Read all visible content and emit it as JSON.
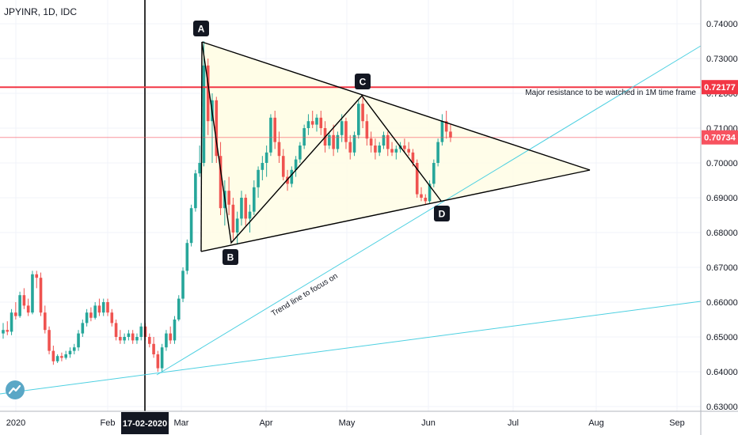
{
  "header": {
    "symbol_title": "JPYINR, 1D, IDC"
  },
  "colors": {
    "up": "#26a69a",
    "down": "#ef5350",
    "trend": "#4dd0e1",
    "resistance": "#f23645",
    "triangle_fill": "#fffde7",
    "price_badge_dark": "#f23645",
    "price_badge_light": "#f7525f"
  },
  "price_labels": {
    "resistance": "0.72177",
    "current": "0.70734"
  },
  "annotations": {
    "resistance_note": "Major resistance to be watched in 1M time frame",
    "trendline_note": "Trend line to focus on",
    "points": [
      "A",
      "B",
      "C",
      "D"
    ],
    "crosshair_date": "17-02-2020"
  },
  "icons": {
    "logo": "tradingview-logo-icon"
  },
  "chart_data": {
    "type": "candlestick",
    "title": "JPYINR, 1D, IDC",
    "ylim": [
      0.63,
      0.745
    ],
    "y_ticks": [
      "0.74000",
      "0.73000",
      "0.72000",
      "0.71000",
      "0.70000",
      "0.69000",
      "0.68000",
      "0.67000",
      "0.66000",
      "0.65000",
      "0.64000",
      "0.63000"
    ],
    "x_ticks": [
      "2020",
      "Feb",
      "Mar",
      "Apr",
      "May",
      "Jun",
      "Jul",
      "Aug",
      "Sep"
    ],
    "resistance_level": 0.72177,
    "last_price": 0.70734,
    "pattern_points": {
      "A": [
        "Mar 09",
        0.7345
      ],
      "B": [
        "Mar 20",
        0.6765
      ],
      "C": [
        "May 06",
        0.7195
      ],
      "D": [
        "Jun 02",
        0.689
      ]
    },
    "candles": [
      [
        0.651,
        0.654,
        0.6495,
        0.652
      ],
      [
        0.652,
        0.6545,
        0.6505,
        0.6515
      ],
      [
        0.6515,
        0.658,
        0.6505,
        0.657
      ],
      [
        0.657,
        0.66,
        0.655,
        0.656
      ],
      [
        0.656,
        0.663,
        0.6555,
        0.662
      ],
      [
        0.662,
        0.664,
        0.658,
        0.659
      ],
      [
        0.659,
        0.661,
        0.656,
        0.657
      ],
      [
        0.657,
        0.669,
        0.6565,
        0.668
      ],
      [
        0.668,
        0.669,
        0.664,
        0.667
      ],
      [
        0.667,
        0.6685,
        0.656,
        0.657
      ],
      [
        0.657,
        0.659,
        0.651,
        0.652
      ],
      [
        0.652,
        0.653,
        0.645,
        0.646
      ],
      [
        0.646,
        0.6475,
        0.642,
        0.643
      ],
      [
        0.643,
        0.645,
        0.6425,
        0.6445
      ],
      [
        0.6445,
        0.6455,
        0.643,
        0.644
      ],
      [
        0.644,
        0.646,
        0.6435,
        0.645
      ],
      [
        0.645,
        0.647,
        0.644,
        0.646
      ],
      [
        0.646,
        0.648,
        0.645,
        0.647
      ],
      [
        0.647,
        0.652,
        0.646,
        0.651
      ],
      [
        0.651,
        0.655,
        0.65,
        0.654
      ],
      [
        0.654,
        0.658,
        0.653,
        0.657
      ],
      [
        0.657,
        0.6585,
        0.6545,
        0.6555
      ],
      [
        0.6555,
        0.66,
        0.655,
        0.659
      ],
      [
        0.659,
        0.661,
        0.656,
        0.657
      ],
      [
        0.657,
        0.661,
        0.656,
        0.66
      ],
      [
        0.66,
        0.661,
        0.656,
        0.657
      ],
      [
        0.657,
        0.658,
        0.653,
        0.654
      ],
      [
        0.654,
        0.655,
        0.649,
        0.65
      ],
      [
        0.65,
        0.652,
        0.648,
        0.649
      ],
      [
        0.649,
        0.651,
        0.648,
        0.65
      ],
      [
        0.65,
        0.652,
        0.649,
        0.651
      ],
      [
        0.651,
        0.652,
        0.648,
        0.649
      ],
      [
        0.649,
        0.651,
        0.648,
        0.65
      ],
      [
        0.65,
        0.654,
        0.649,
        0.653
      ],
      [
        0.653,
        0.654,
        0.649,
        0.65
      ],
      [
        0.65,
        0.651,
        0.647,
        0.648
      ],
      [
        0.648,
        0.65,
        0.644,
        0.645
      ],
      [
        0.645,
        0.646,
        0.64,
        0.641
      ],
      [
        0.641,
        0.648,
        0.64,
        0.647
      ],
      [
        0.647,
        0.652,
        0.646,
        0.651
      ],
      [
        0.651,
        0.653,
        0.648,
        0.649
      ],
      [
        0.649,
        0.656,
        0.648,
        0.655
      ],
      [
        0.655,
        0.662,
        0.6545,
        0.661
      ],
      [
        0.661,
        0.67,
        0.66,
        0.669
      ],
      [
        0.669,
        0.678,
        0.668,
        0.677
      ],
      [
        0.677,
        0.688,
        0.676,
        0.687
      ],
      [
        0.687,
        0.698,
        0.686,
        0.697
      ],
      [
        0.697,
        0.705,
        0.696,
        0.7
      ],
      [
        0.7,
        0.735,
        0.699,
        0.728
      ],
      [
        0.728,
        0.73,
        0.708,
        0.712
      ],
      [
        0.712,
        0.72,
        0.7,
        0.718
      ],
      [
        0.718,
        0.719,
        0.7,
        0.702
      ],
      [
        0.702,
        0.706,
        0.685,
        0.687
      ],
      [
        0.687,
        0.695,
        0.682,
        0.692
      ],
      [
        0.692,
        0.696,
        0.685,
        0.688
      ],
      [
        0.688,
        0.69,
        0.678,
        0.68
      ],
      [
        0.68,
        0.686,
        0.6765,
        0.684
      ],
      [
        0.684,
        0.692,
        0.682,
        0.69
      ],
      [
        0.69,
        0.691,
        0.682,
        0.684
      ],
      [
        0.684,
        0.688,
        0.68,
        0.686
      ],
      [
        0.686,
        0.695,
        0.685,
        0.693
      ],
      [
        0.693,
        0.699,
        0.69,
        0.698
      ],
      [
        0.698,
        0.702,
        0.695,
        0.7
      ],
      [
        0.7,
        0.705,
        0.696,
        0.703
      ],
      [
        0.703,
        0.714,
        0.702,
        0.713
      ],
      [
        0.713,
        0.715,
        0.704,
        0.706
      ],
      [
        0.706,
        0.709,
        0.7,
        0.702
      ],
      [
        0.702,
        0.704,
        0.695,
        0.696
      ],
      [
        0.696,
        0.698,
        0.692,
        0.694
      ],
      [
        0.694,
        0.699,
        0.693,
        0.698
      ],
      [
        0.698,
        0.702,
        0.696,
        0.701
      ],
      [
        0.701,
        0.706,
        0.7,
        0.705
      ],
      [
        0.705,
        0.711,
        0.704,
        0.71
      ],
      [
        0.71,
        0.714,
        0.708,
        0.712
      ],
      [
        0.712,
        0.715,
        0.71,
        0.711
      ],
      [
        0.711,
        0.714,
        0.709,
        0.713
      ],
      [
        0.713,
        0.715,
        0.708,
        0.71
      ],
      [
        0.71,
        0.712,
        0.703,
        0.705
      ],
      [
        0.705,
        0.709,
        0.704,
        0.708
      ],
      [
        0.708,
        0.711,
        0.702,
        0.704
      ],
      [
        0.704,
        0.709,
        0.703,
        0.708
      ],
      [
        0.708,
        0.714,
        0.706,
        0.712
      ],
      [
        0.712,
        0.713,
        0.704,
        0.706
      ],
      [
        0.706,
        0.708,
        0.701,
        0.703
      ],
      [
        0.703,
        0.709,
        0.702,
        0.708
      ],
      [
        0.708,
        0.718,
        0.707,
        0.717
      ],
      [
        0.717,
        0.7195,
        0.71,
        0.712
      ],
      [
        0.712,
        0.714,
        0.705,
        0.707
      ],
      [
        0.707,
        0.709,
        0.703,
        0.705
      ],
      [
        0.705,
        0.707,
        0.701,
        0.703
      ],
      [
        0.703,
        0.706,
        0.702,
        0.705
      ],
      [
        0.705,
        0.709,
        0.704,
        0.708
      ],
      [
        0.708,
        0.709,
        0.702,
        0.704
      ],
      [
        0.704,
        0.706,
        0.702,
        0.703
      ],
      [
        0.703,
        0.705,
        0.701,
        0.704
      ],
      [
        0.704,
        0.706,
        0.703,
        0.705
      ],
      [
        0.705,
        0.707,
        0.703,
        0.704
      ],
      [
        0.704,
        0.706,
        0.702,
        0.703
      ],
      [
        0.703,
        0.704,
        0.699,
        0.7
      ],
      [
        0.7,
        0.701,
        0.69,
        0.691
      ],
      [
        0.691,
        0.693,
        0.689,
        0.69
      ],
      [
        0.69,
        0.691,
        0.688,
        0.689
      ],
      [
        0.689,
        0.695,
        0.6885,
        0.694
      ],
      [
        0.694,
        0.701,
        0.693,
        0.7
      ],
      [
        0.7,
        0.707,
        0.699,
        0.706
      ],
      [
        0.706,
        0.714,
        0.705,
        0.712
      ],
      [
        0.712,
        0.715,
        0.707,
        0.709
      ],
      [
        0.709,
        0.711,
        0.706,
        0.7073
      ]
    ]
  }
}
